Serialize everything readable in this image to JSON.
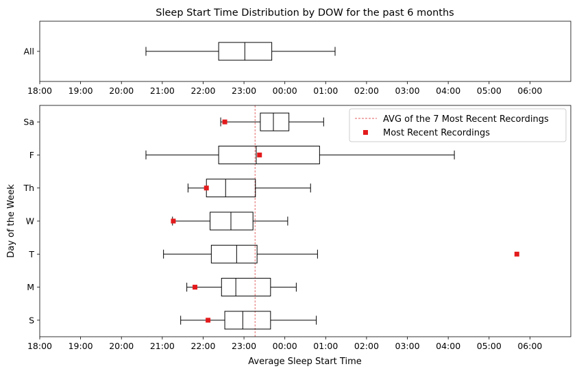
{
  "chart_data": [
    {
      "type": "boxplot",
      "title": "Sleep Start Time Distribution by DOW for the past 6 months",
      "xlabel": "",
      "ylabel": "",
      "x_unit": "hours since 18:00",
      "xlim": [
        0,
        13
      ],
      "x_ticks": [
        0,
        1,
        2,
        3,
        4,
        5,
        6,
        7,
        8,
        9,
        10,
        11,
        12
      ],
      "x_tick_labels": [
        "18:00",
        "19:00",
        "20:00",
        "21:00",
        "22:00",
        "23:00",
        "00:00",
        "01:00",
        "02:00",
        "03:00",
        "04:00",
        "05:00",
        "06:00"
      ],
      "categories": [
        "All"
      ],
      "boxes": [
        {
          "label": "All",
          "whisker_low": 2.6,
          "q1": 4.38,
          "median": 5.02,
          "q3": 5.68,
          "whisker_high": 7.23
        }
      ],
      "grid": false
    },
    {
      "type": "boxplot",
      "title": "",
      "xlabel": "Average Sleep Start Time",
      "ylabel": "Day of the Week",
      "x_unit": "hours since 18:00",
      "xlim": [
        0,
        13
      ],
      "x_ticks": [
        0,
        1,
        2,
        3,
        4,
        5,
        6,
        7,
        8,
        9,
        10,
        11,
        12
      ],
      "x_tick_labels": [
        "18:00",
        "19:00",
        "20:00",
        "21:00",
        "22:00",
        "23:00",
        "00:00",
        "01:00",
        "02:00",
        "03:00",
        "04:00",
        "05:00",
        "06:00"
      ],
      "categories": [
        "Sa",
        "F",
        "Th",
        "W",
        "T",
        "M",
        "S"
      ],
      "boxes": [
        {
          "label": "Sa",
          "whisker_low": 4.43,
          "q1": 5.4,
          "median": 5.72,
          "q3": 6.1,
          "whisker_high": 6.95
        },
        {
          "label": "F",
          "whisker_low": 2.6,
          "q1": 4.38,
          "median": 5.3,
          "q3": 6.85,
          "whisker_high": 10.15
        },
        {
          "label": "Th",
          "whisker_low": 3.63,
          "q1": 4.08,
          "median": 4.55,
          "q3": 5.28,
          "whisker_high": 6.63
        },
        {
          "label": "W",
          "whisker_low": 3.25,
          "q1": 4.17,
          "median": 4.68,
          "q3": 5.22,
          "whisker_high": 6.07
        },
        {
          "label": "T",
          "whisker_low": 3.03,
          "q1": 4.2,
          "median": 4.82,
          "q3": 5.32,
          "whisker_high": 6.8
        },
        {
          "label": "M",
          "whisker_low": 3.6,
          "q1": 4.45,
          "median": 4.8,
          "q3": 5.65,
          "whisker_high": 6.28
        },
        {
          "label": "S",
          "whisker_low": 3.45,
          "q1": 4.53,
          "median": 4.97,
          "q3": 5.65,
          "whisker_high": 6.77
        }
      ],
      "series": [
        {
          "name": "AVG of the 7 Most Recent Recordings",
          "type": "vline",
          "x": 5.27,
          "color": "#d62728"
        },
        {
          "name": "Most Recent Recordings",
          "type": "scatter",
          "color": "#e31a1c",
          "points": [
            {
              "category": "Sa",
              "x": 4.53
            },
            {
              "category": "F",
              "x": 5.38
            },
            {
              "category": "Th",
              "x": 4.08
            },
            {
              "category": "W",
              "x": 3.27
            },
            {
              "category": "T",
              "x": 11.68
            },
            {
              "category": "M",
              "x": 3.8
            },
            {
              "category": "S",
              "x": 4.12
            }
          ]
        }
      ],
      "legend_position": "top-right",
      "grid": false
    }
  ]
}
